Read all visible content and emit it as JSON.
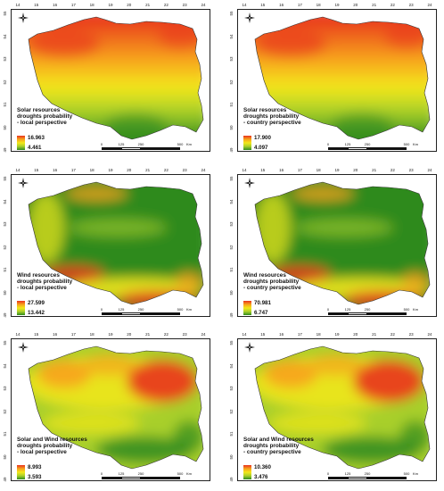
{
  "axes": {
    "lon_ticks": [
      "14",
      "15",
      "16",
      "17",
      "18",
      "19",
      "20",
      "21",
      "22",
      "23",
      "24"
    ],
    "lat_ticks": [
      "55",
      "54",
      "53",
      "52",
      "51",
      "50",
      "49"
    ]
  },
  "scale_bar": {
    "labels": [
      "0",
      "125",
      "250",
      "500"
    ],
    "unit": "Km"
  },
  "north_arrow": {
    "icon": "north-arrow-icon",
    "label": "N"
  },
  "colors": {
    "high": "#e8321e",
    "mid_high": "#f7a21b",
    "mid": "#f3e81a",
    "mid_low": "#a8cf2a",
    "low": "#2e8a1e"
  },
  "panels": [
    {
      "title_lines": [
        "Solar resources",
        "droughts probability",
        "- local perspective"
      ],
      "legend_max": "16.963",
      "legend_min": "4.461",
      "pattern": "north-south"
    },
    {
      "title_lines": [
        "Solar resources",
        "droughts probability",
        "- country perspective"
      ],
      "legend_max": "17.900",
      "legend_min": "4.097",
      "pattern": "north-south"
    },
    {
      "title_lines": [
        "Wind resources",
        "droughts probability",
        "- local perspective"
      ],
      "legend_max": "27.599",
      "legend_min": "13.442",
      "pattern": "south-mountains"
    },
    {
      "title_lines": [
        "Wind resources",
        "droughts probability",
        "- country perspective"
      ],
      "legend_max": "70.981",
      "legend_min": "6.747",
      "pattern": "south-mountains"
    },
    {
      "title_lines": [
        "Solar and Wind resources",
        "droughts probability",
        "- local perspective"
      ],
      "legend_max": "8.993",
      "legend_min": "3.593",
      "pattern": "north-east"
    },
    {
      "title_lines": [
        "Solar and Wind resources",
        "droughts probability",
        "- country perspective"
      ],
      "legend_max": "10.360",
      "legend_min": "3.476",
      "pattern": "north-east"
    }
  ]
}
